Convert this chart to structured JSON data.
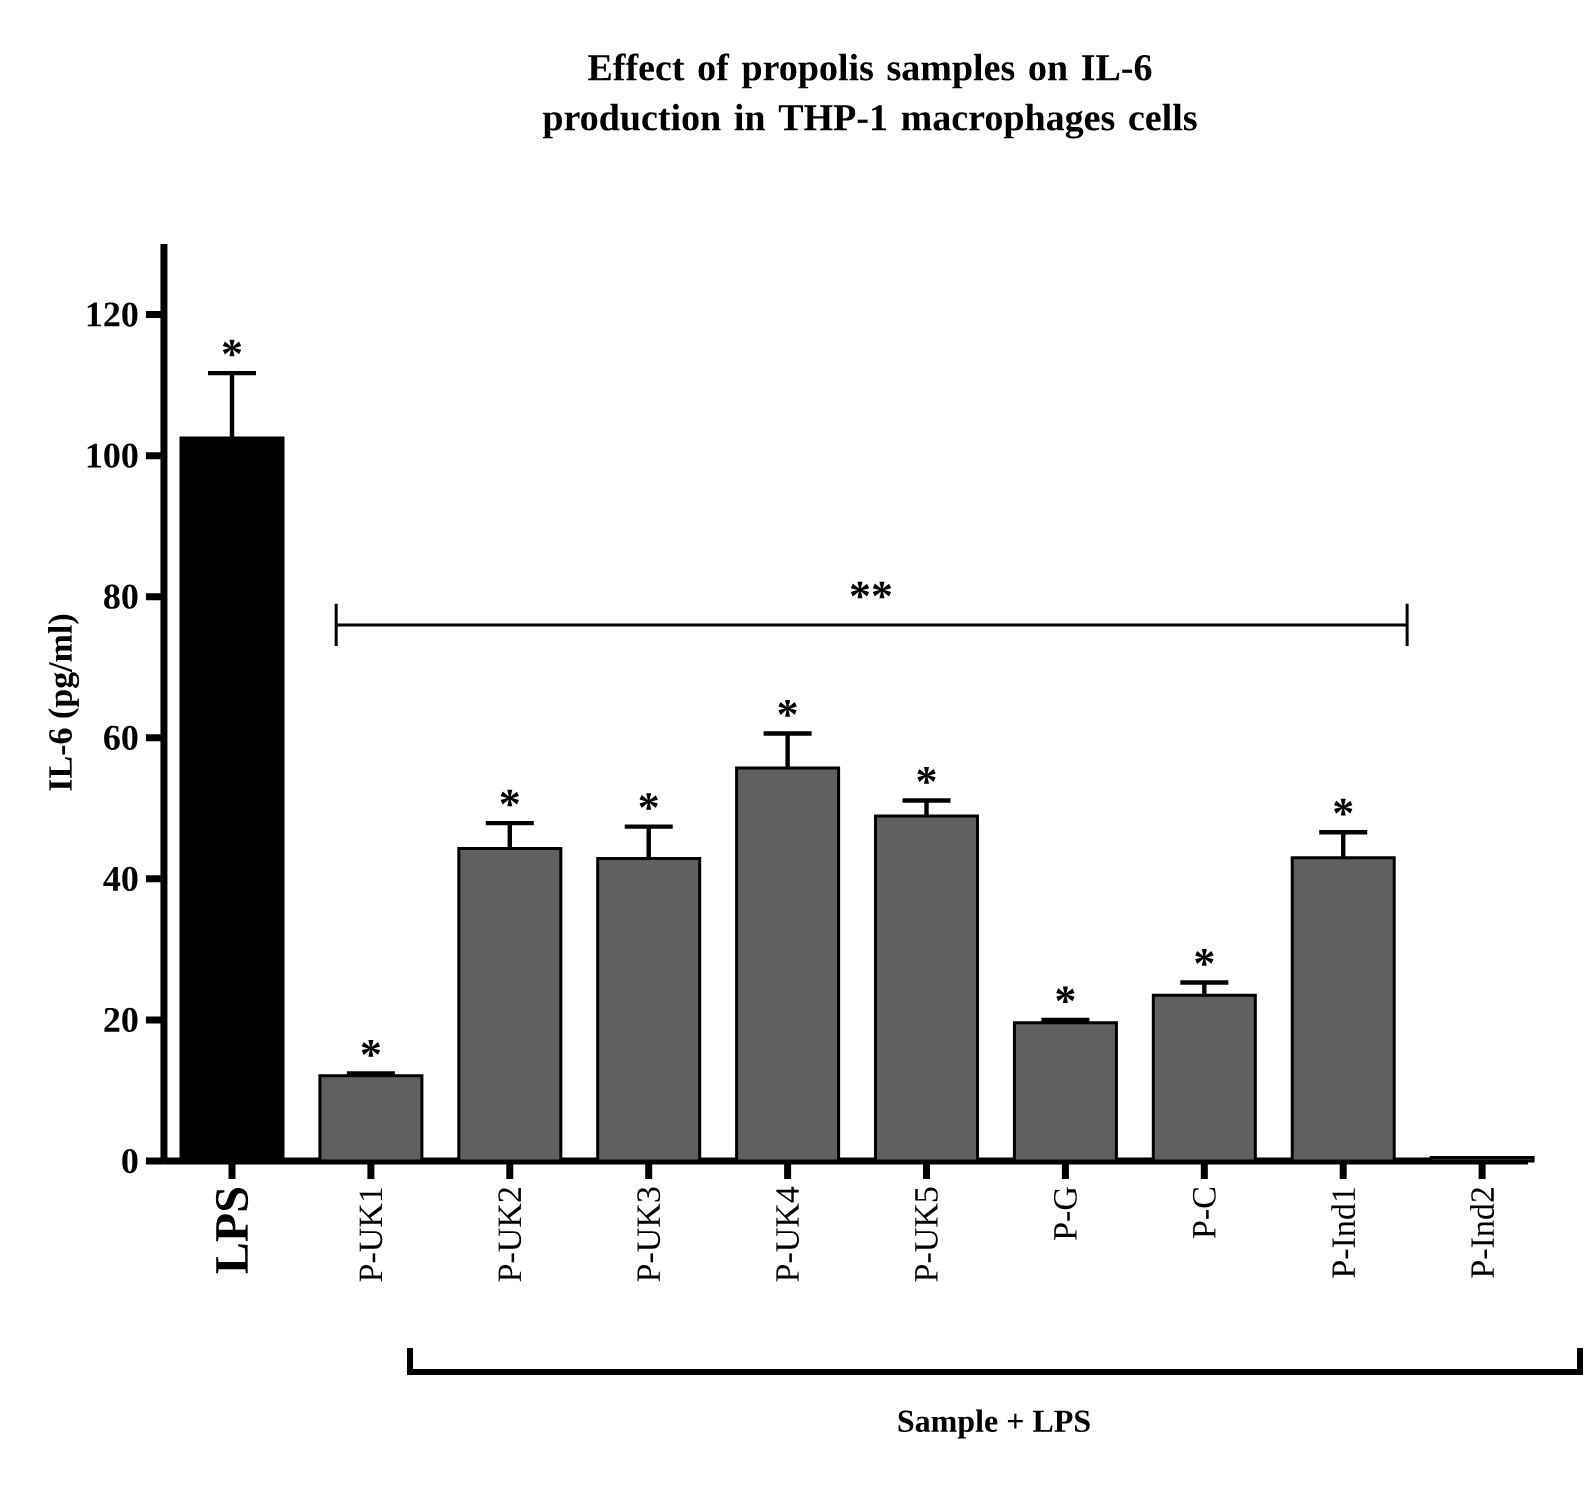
{
  "chart_data": {
    "type": "bar",
    "title": "Effect of propolis samples on IL-6 production in THP-1 macrophages cells",
    "xlabel": "Sample + LPS",
    "ylabel": "IL-6 (pg/ml)",
    "categories": [
      "LPS",
      "P-UK1",
      "P-UK2",
      "P-UK3",
      "P-UK4",
      "P-UK5",
      "P-G",
      "P-C",
      "P-Ind1",
      "P-Ind2"
    ],
    "values": [
      102.5,
      12.1,
      44.3,
      42.9,
      55.7,
      48.9,
      19.6,
      23.5,
      43.0,
      0.5
    ],
    "errors": [
      9.2,
      0.3,
      3.6,
      4.5,
      4.9,
      2.2,
      0.4,
      1.8,
      3.6,
      null
    ],
    "colors": [
      "#000000",
      "#606060",
      "#606060",
      "#606060",
      "#606060",
      "#606060",
      "#606060",
      "#606060",
      "#606060",
      "#606060"
    ],
    "value_labels": [
      "*",
      "*",
      "*",
      "*",
      "*",
      "*",
      "*",
      "*",
      "*",
      null
    ],
    "annotations": [
      "**"
    ],
    "ylim": [
      0,
      130
    ],
    "yticks": [
      0,
      20,
      40,
      60,
      80,
      100,
      120
    ],
    "grid": false
  }
}
